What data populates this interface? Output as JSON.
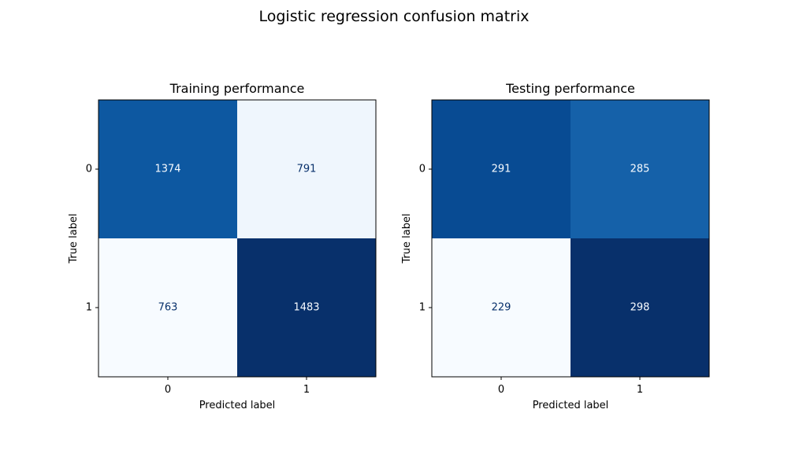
{
  "chart_data": {
    "type": "heatmap",
    "title": "Logistic regression confusion matrix",
    "colormap": {
      "name": "Blues",
      "light": "#f7fbff",
      "dark": "#08306b",
      "text_on_light": "#08306b",
      "text_on_dark": "#f7fbff"
    },
    "panels": [
      {
        "title": "Training performance",
        "xlabel": "Predicted label",
        "ylabel": "True label",
        "x_ticks": [
          "0",
          "1"
        ],
        "y_ticks": [
          "0",
          "1"
        ],
        "matrix": [
          [
            1374,
            791
          ],
          [
            763,
            1483
          ]
        ]
      },
      {
        "title": "Testing performance",
        "xlabel": "Predicted label",
        "ylabel": "True label",
        "x_ticks": [
          "0",
          "1"
        ],
        "y_ticks": [
          "0",
          "1"
        ],
        "matrix": [
          [
            291,
            285
          ],
          [
            229,
            298
          ]
        ]
      }
    ]
  }
}
